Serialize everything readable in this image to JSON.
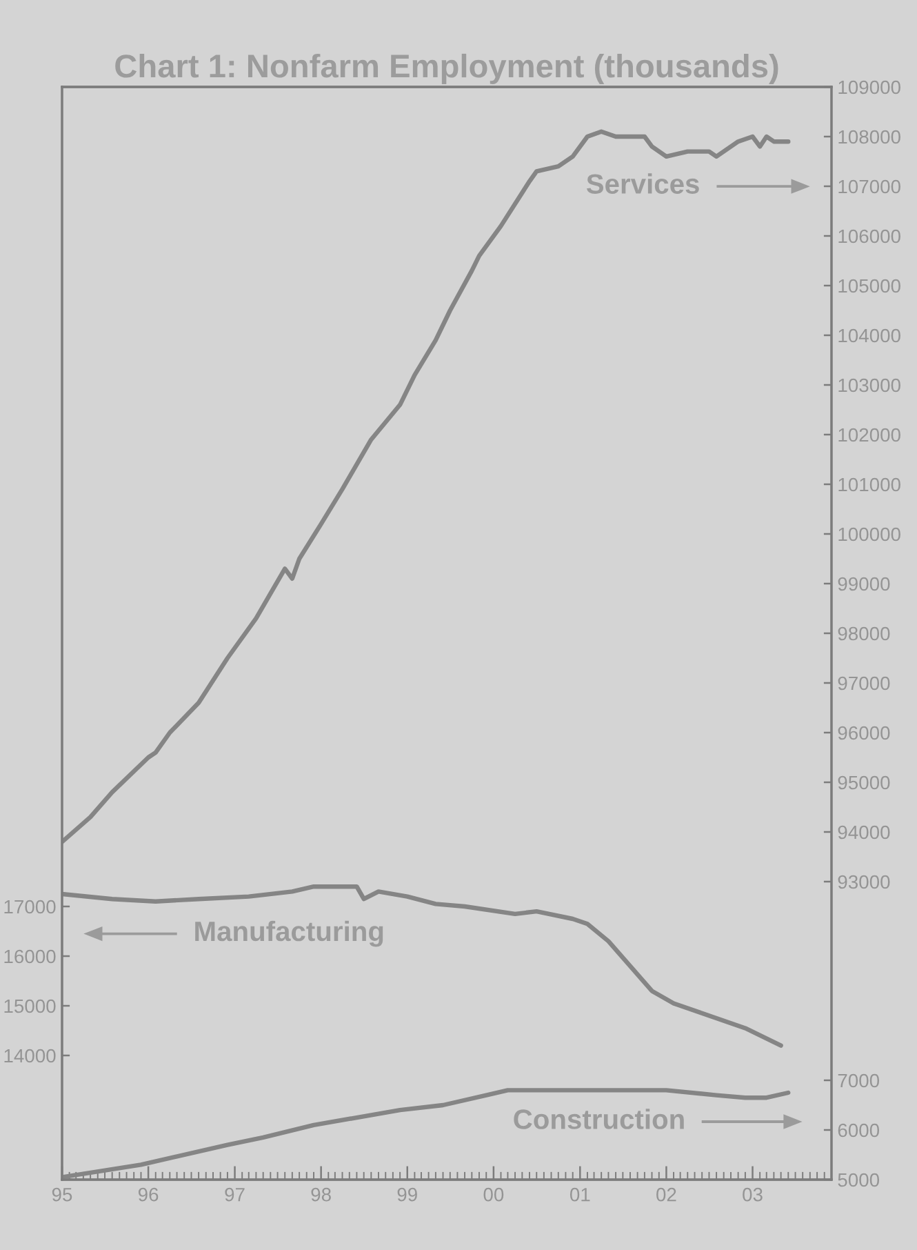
{
  "chart_data": {
    "type": "line",
    "title": "Chart 1: Nonfarm Employment (thousands)",
    "xlim": [
      "1995-01",
      "2003-12"
    ],
    "xticks": [
      {
        "value": "1995-01",
        "label": "95"
      },
      {
        "value": "1996-01",
        "label": "96"
      },
      {
        "value": "1997-01",
        "label": "97"
      },
      {
        "value": "1998-01",
        "label": "98"
      },
      {
        "value": "1999-01",
        "label": "99"
      },
      {
        "value": "2000-01",
        "label": "00"
      },
      {
        "value": "2001-01",
        "label": "01"
      },
      {
        "value": "2002-01",
        "label": "02"
      },
      {
        "value": "2003-01",
        "label": "03"
      }
    ],
    "ylim": [
      11500,
      33500
    ],
    "yticks": [
      14000,
      15000,
      16000,
      17000
    ],
    "y2lim": [
      87000,
      109000
    ],
    "y2ticks": [
      93000,
      94000,
      95000,
      96000,
      97000,
      98000,
      99000,
      100000,
      101000,
      102000,
      103000,
      104000,
      105000,
      106000,
      107000,
      108000,
      109000
    ],
    "y3lim": [
      5000,
      27000
    ],
    "y3ticks": [
      5000,
      6000,
      7000
    ],
    "series": [
      {
        "name": "Services",
        "axis": "y2",
        "color": "#858585",
        "x": [
          "1995-01",
          "1995-05",
          "1995-08",
          "1996-01",
          "1996-02",
          "1996-04",
          "1996-08",
          "1996-12",
          "1997-04",
          "1997-08",
          "1997-09",
          "1997-10",
          "1998-01",
          "1998-04",
          "1998-08",
          "1998-12",
          "1999-02",
          "1999-05",
          "1999-07",
          "1999-10",
          "1999-11",
          "2000-02",
          "2000-06",
          "2000-07",
          "2000-10",
          "2000-12",
          "2001-02",
          "2001-04",
          "2001-06",
          "2001-10",
          "2001-11",
          "2002-01",
          "2002-04",
          "2002-07",
          "2002-08",
          "2002-11",
          "2003-01",
          "2003-02",
          "2003-03",
          "2003-04",
          "2003-06"
        ],
        "values": [
          93800,
          94300,
          94800,
          95500,
          95600,
          96000,
          96600,
          97500,
          98300,
          99300,
          99100,
          99500,
          100200,
          100900,
          101900,
          102600,
          103200,
          103900,
          104500,
          105300,
          105600,
          106200,
          107100,
          107300,
          107400,
          107600,
          108000,
          108100,
          108000,
          108000,
          107800,
          107600,
          107700,
          107700,
          107600,
          107900,
          108000,
          107800,
          108000,
          107900,
          107900
        ]
      },
      {
        "name": "Manufacturing",
        "axis": "y",
        "color": "#858585",
        "x": [
          "1995-01",
          "1995-08",
          "1996-02",
          "1996-08",
          "1997-03",
          "1997-09",
          "1997-12",
          "1998-06",
          "1998-07",
          "1998-09",
          "1999-01",
          "1999-05",
          "1999-09",
          "2000-04",
          "2000-07",
          "2000-12",
          "2001-02",
          "2001-05",
          "2001-08",
          "2001-11",
          "2002-02",
          "2002-06",
          "2002-12",
          "2003-05"
        ],
        "values": [
          17250,
          17150,
          17100,
          17150,
          17200,
          17300,
          17400,
          17400,
          17150,
          17300,
          17200,
          17050,
          17000,
          16850,
          16900,
          16750,
          16650,
          16300,
          15800,
          15300,
          15050,
          14850,
          14550,
          14200
        ]
      },
      {
        "name": "Construction",
        "axis": "y3",
        "color": "#858585",
        "x": [
          "1995-01",
          "1995-12",
          "1996-12",
          "1997-05",
          "1997-12",
          "1998-12",
          "1999-06",
          "1999-12",
          "2000-03",
          "2001-03",
          "2002-01",
          "2002-08",
          "2002-12",
          "2003-03",
          "2003-06"
        ],
        "values": [
          5050,
          5300,
          5700,
          5850,
          6100,
          6400,
          6500,
          6700,
          6800,
          6800,
          6800,
          6700,
          6650,
          6650,
          6750
        ]
      }
    ]
  }
}
